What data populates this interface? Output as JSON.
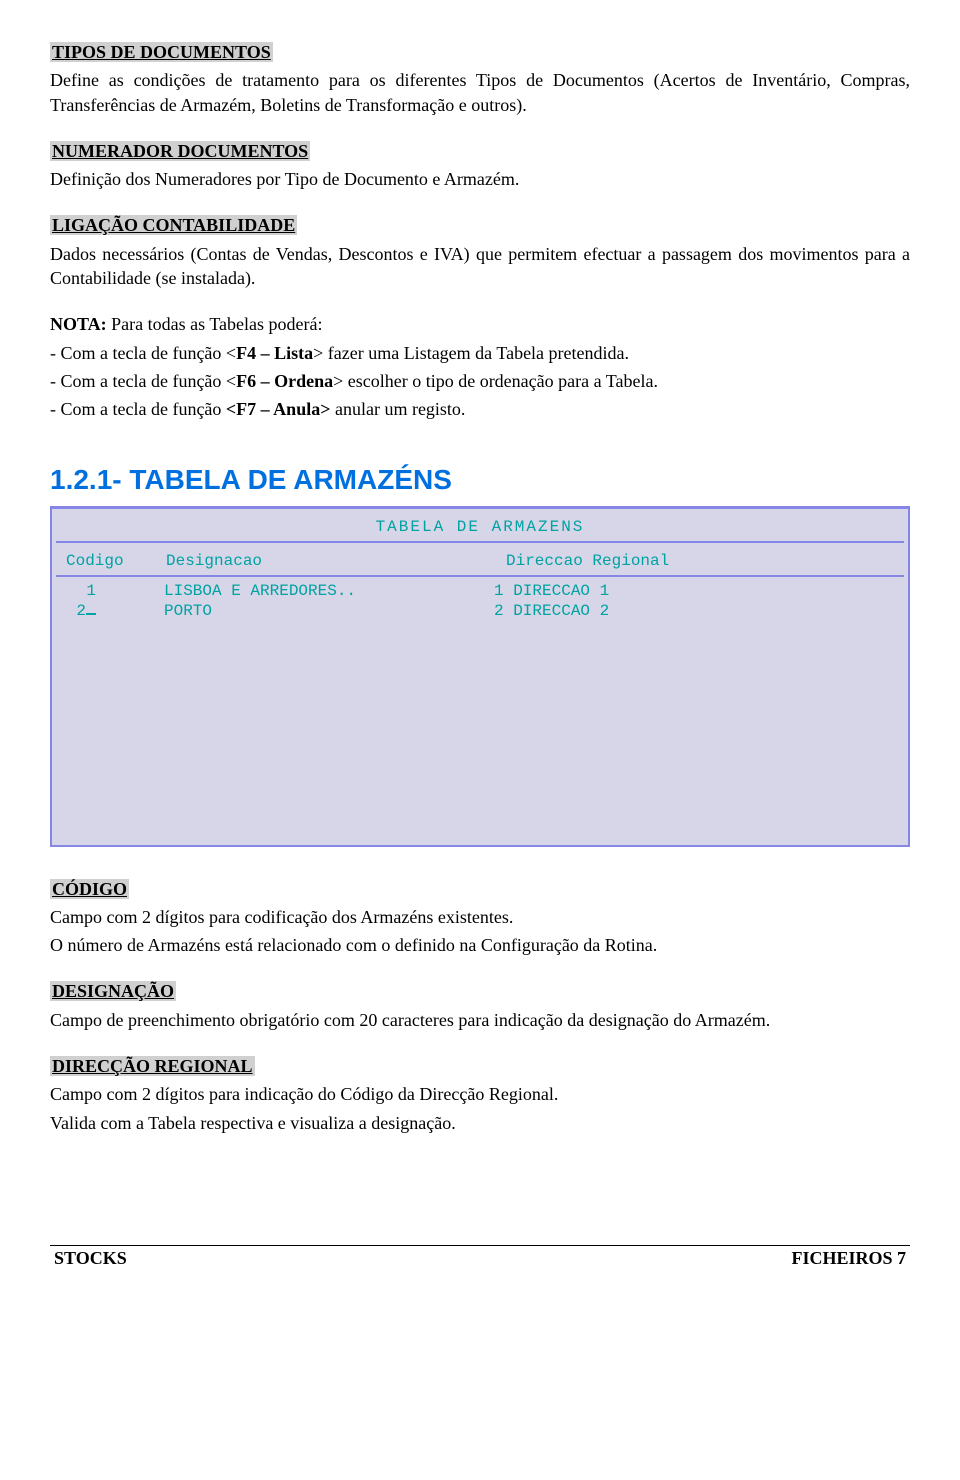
{
  "sections": {
    "tipos": {
      "title": "TIPOS DE DOCUMENTOS",
      "body": "Define as condições de tratamento para os diferentes Tipos de Documentos (Acertos de Inventário, Compras, Transferências de Armazém, Boletins de Transformação e outros)."
    },
    "numerador": {
      "title": "NUMERADOR DOCUMENTOS",
      "body": "Definição dos Numeradores por Tipo de Documento e Armazém."
    },
    "ligacao": {
      "title": "LIGAÇÃO CONTABILIDADE",
      "body": "Dados necessários (Contas de Vendas, Descontos e IVA) que permitem efectuar a passagem dos movimentos para a Contabilidade (se instalada)."
    },
    "nota": {
      "lead": "NOTA:",
      "lead_rest": " Para todas as Tabelas poderá:",
      "l1a": "- Com a tecla de função <",
      "l1b": "F4 – Lista",
      "l1c": "> fazer uma Listagem da Tabela pretendida.",
      "l2a": "- Com a tecla de função <",
      "l2b": "F6 – Ordena",
      "l2c": "> escolher o tipo de ordenação para a Tabela.",
      "l3a": "- Com a tecla de função ",
      "l3b": "<F7 – Anula>",
      "l3c": " anular um registo."
    },
    "heading": "1.2.1- TABELA DE ARMAZÉNS",
    "codigo": {
      "title": "CÓDIGO",
      "l1": "Campo com 2 dígitos para codificação dos Armazéns existentes.",
      "l2": "O número de Armazéns está relacionado com o definido na Configuração da Rotina."
    },
    "designacao": {
      "title": "DESIGNAÇÃO",
      "body": "Campo de preenchimento obrigatório com 20 caracteres para indicação da designação do Armazém."
    },
    "direccao": {
      "title": "DIRECÇÃO REGIONAL",
      "l1": "Campo com 2 dígitos para indicação do Código da Direcção Regional.",
      "l2": "Valida com a Tabela respectiva e visualiza a designação."
    }
  },
  "terminal": {
    "title": "TABELA DE ARMAZENS",
    "headers": {
      "c1": "Codigo",
      "c2": "Designacao",
      "c3": "Direccao Regional"
    },
    "rows": [
      {
        "c1": "1",
        "c2": "LISBOA E ARREDORES..",
        "c3": "1 DIRECCAO 1"
      },
      {
        "c1": "2",
        "c2": "PORTO",
        "c3": "2 DIRECCAO 2"
      }
    ],
    "colors": {
      "border": "#8686e6",
      "bg": "#d6d6e8",
      "text": "#00a2a2"
    }
  },
  "footer": {
    "left": "STOCKS",
    "right": "FICHEIROS   7"
  }
}
